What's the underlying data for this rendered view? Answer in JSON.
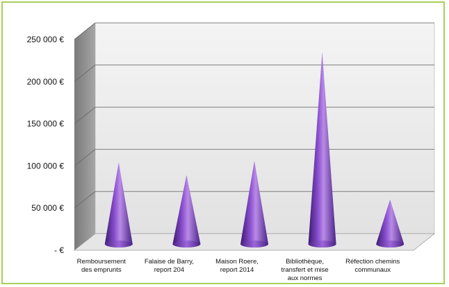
{
  "chart_data": {
    "type": "bar",
    "mark": "cone",
    "title": "",
    "xlabel": "",
    "ylabel": "",
    "ylim": [
      0,
      250000
    ],
    "y_ticks": [
      {
        "value": 0,
        "label": "- €"
      },
      {
        "value": 50000,
        "label": "50 000 €"
      },
      {
        "value": 100000,
        "label": "100 000 €"
      },
      {
        "value": 150000,
        "label": "150 000 €"
      },
      {
        "value": 200000,
        "label": "200 000 €"
      },
      {
        "value": 250000,
        "label": "250 000 €"
      }
    ],
    "categories": [
      [
        "Remboursement",
        "des emprunts"
      ],
      [
        "Falaise de Barry,",
        "report 204"
      ],
      [
        "Maison Roere,",
        "report 2014"
      ],
      [
        "Bibliothèque,",
        "transfert et mise",
        "aux normes"
      ],
      [
        "Réfection chemins",
        "communaux"
      ]
    ],
    "series": [
      {
        "values": [
          87000,
          72000,
          89000,
          218000,
          43000
        ]
      }
    ],
    "grid": true,
    "legend": "none",
    "colors": {
      "cone_dark": "#3a1a6e",
      "cone_mid": "#7b3fc0",
      "cone_light": "#b98be6",
      "frame_border": "#a8cf5b",
      "wall": "#d9d9d9",
      "side_wall": "#8c8c8c",
      "gridline": "#7f7f7f"
    }
  }
}
